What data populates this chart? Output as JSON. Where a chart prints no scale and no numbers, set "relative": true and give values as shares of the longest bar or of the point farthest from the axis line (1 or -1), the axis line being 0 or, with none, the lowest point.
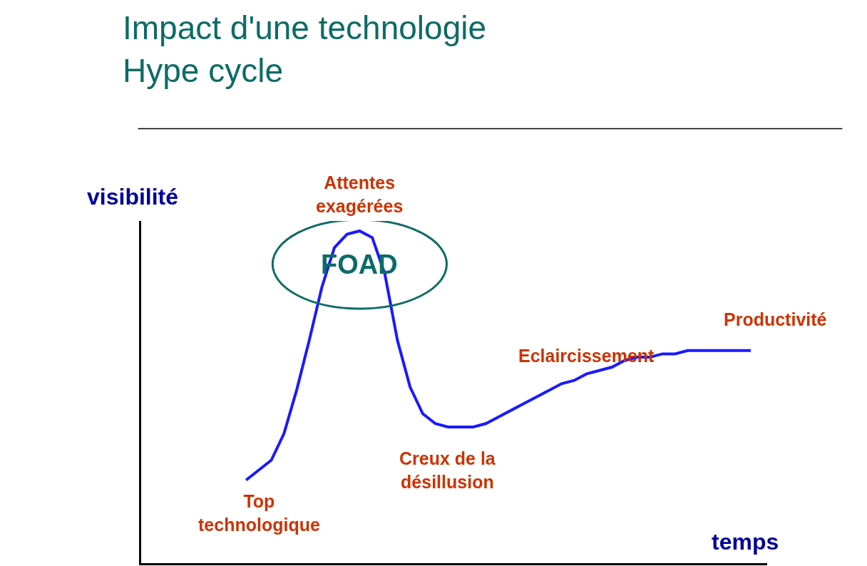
{
  "chart_data": {
    "type": "line",
    "title": "Impact d'une technologie\nHype cycle",
    "xlabel": "temps",
    "ylabel": "visibilité",
    "relative": true,
    "color": "#1a1aff",
    "marker": "none",
    "line_style": "solid",
    "legend": false,
    "categories": [
      null,
      null,
      null,
      null,
      null,
      null,
      null,
      null,
      null,
      null,
      null,
      null,
      null,
      null,
      null,
      null,
      null,
      null,
      null,
      null,
      null,
      null,
      null,
      null,
      null,
      null,
      null,
      null,
      null,
      null,
      null,
      null,
      null,
      null,
      null,
      null,
      null,
      null,
      null,
      null,
      null
    ],
    "values": [
      0.25,
      0.28,
      0.31,
      0.39,
      0.52,
      0.67,
      0.83,
      0.95,
      0.99,
      1,
      0.98,
      0.87,
      0.67,
      0.53,
      0.45,
      0.42,
      0.41,
      0.41,
      0.41,
      0.42,
      0.44,
      0.46,
      0.48,
      0.5,
      0.52,
      0.54,
      0.55,
      0.57,
      0.58,
      0.59,
      0.61,
      0.62,
      0.62,
      0.63,
      0.63,
      0.64,
      0.64,
      0.64,
      0.64,
      0.64,
      0.64
    ],
    "annotations": [
      "Top\ntechnologique",
      "Attentes\nexagérées",
      "FOAD",
      "Creux de la\ndésillusion",
      "Eclaircissement",
      "Productivité"
    ]
  }
}
